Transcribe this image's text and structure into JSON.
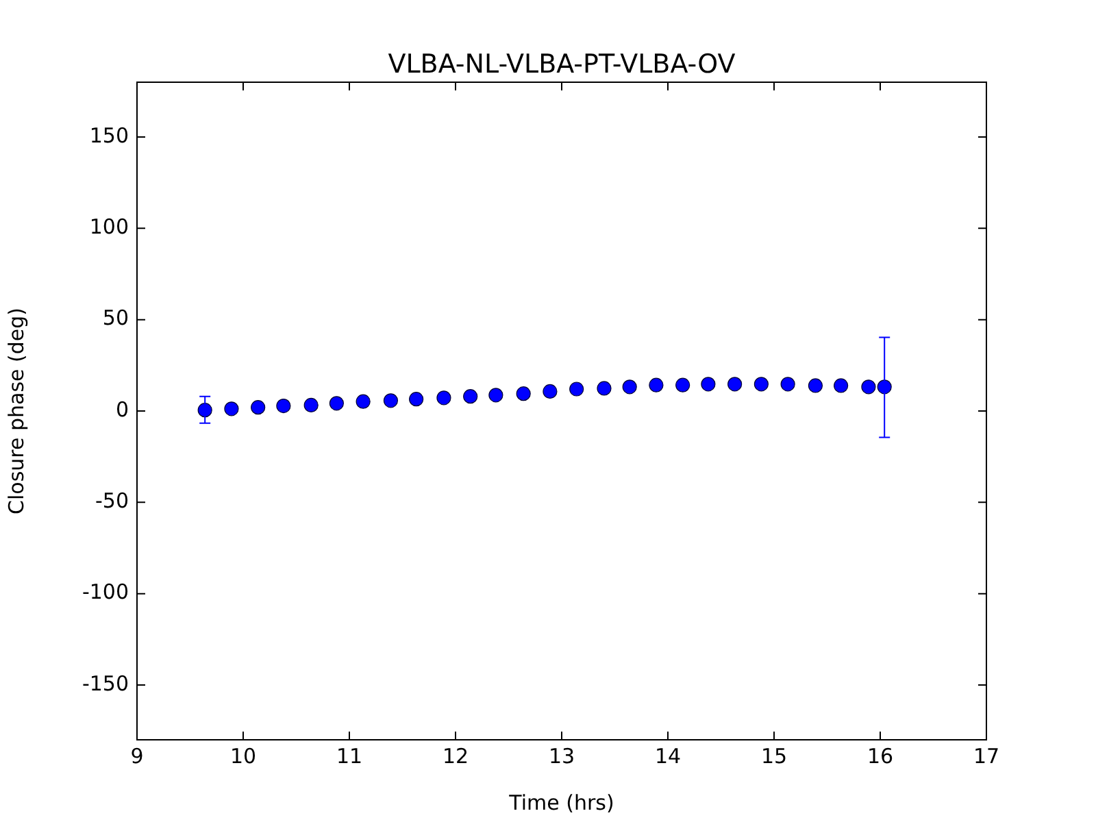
{
  "chart_data": {
    "type": "scatter",
    "title": "VLBA-NL-VLBA-PT-VLBA-OV",
    "xlabel": "Time (hrs)",
    "ylabel": "Closure phase (deg)",
    "xlim": [
      9,
      17
    ],
    "xticks": [
      9,
      10,
      11,
      12,
      13,
      14,
      15,
      16,
      17
    ],
    "ylim": [
      -180,
      180
    ],
    "yticks": [
      -150,
      -100,
      -50,
      0,
      50,
      100,
      150
    ],
    "grid": false,
    "legend": false,
    "marker": "circle",
    "series": [
      {
        "color": "#0000ff",
        "x": [
          9.64,
          9.89,
          10.14,
          10.38,
          10.64,
          10.88,
          11.13,
          11.39,
          11.63,
          11.89,
          12.14,
          12.38,
          12.64,
          12.89,
          13.14,
          13.4,
          13.64,
          13.89,
          14.14,
          14.38,
          14.63,
          14.88,
          15.13,
          15.39,
          15.63,
          15.89,
          16.04
        ],
        "values": [
          0.5,
          1.2,
          2,
          2.8,
          3.2,
          4.2,
          5.2,
          5.7,
          6.5,
          7.2,
          8,
          8.7,
          9.5,
          10.7,
          12,
          12.4,
          13.2,
          14.2,
          14.2,
          14.7,
          14.7,
          14.7,
          14.7,
          13.9,
          13.9,
          13.2,
          13.2
        ],
        "errors": [
          [
            -6.7,
            8
          ],
          null,
          null,
          null,
          null,
          null,
          null,
          null,
          null,
          null,
          null,
          null,
          null,
          null,
          null,
          null,
          null,
          null,
          null,
          null,
          null,
          null,
          null,
          null,
          null,
          null,
          [
            -14.4,
            40.3
          ]
        ]
      }
    ]
  }
}
